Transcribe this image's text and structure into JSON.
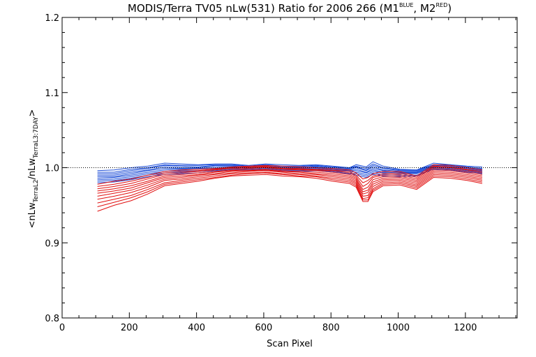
{
  "chart_data": {
    "type": "line",
    "title": {
      "main": "MODIS/Terra TV05 nLw(531) Ratio for 2006 266 (M1",
      "sup1": "BLUE",
      "mid": ", M2",
      "sup2": "RED",
      "end": ")"
    },
    "xlabel": "Scan Pixel",
    "ylabel": {
      "open": "<nLw",
      "sub1": "TerraL2",
      "slash": "/nLw",
      "sub2": "TerraL3:7DAY",
      "close": ">"
    },
    "xlim": [
      0,
      1354
    ],
    "ylim": [
      0.8,
      1.2
    ],
    "xticks": [
      0,
      200,
      400,
      600,
      800,
      1000,
      1200
    ],
    "xtick_labels": [
      "0",
      "200",
      "400",
      "600",
      "800",
      "1000",
      "1200"
    ],
    "yticks": [
      0.8,
      0.9,
      1.0,
      1.1,
      1.2
    ],
    "ytick_labels": [
      "0.8",
      "0.9",
      "1.0",
      "1.1",
      "1.2"
    ],
    "reference_line": 1.0,
    "reference_style": "dotted",
    "grid": false,
    "colors": {
      "blue": "#1f4fd8",
      "red": "#e01010",
      "reference": "#000000"
    },
    "series": [
      {
        "color": "blue",
        "x": [
          105,
          155,
          205,
          255,
          305,
          355,
          405,
          455,
          505,
          555,
          605,
          655,
          705,
          755,
          805,
          855,
          875,
          905,
          925,
          955,
          1005,
          1055,
          1105,
          1155,
          1205,
          1250
        ],
        "y": [
          0.996,
          0.997,
          1.0,
          1.002,
          1.006,
          1.005,
          1.004,
          1.005,
          1.005,
          1.003,
          1.005,
          1.004,
          1.003,
          1.004,
          1.002,
          1.0,
          1.004,
          1.001,
          1.008,
          1.002,
          0.998,
          0.997,
          1.004,
          1.004,
          1.002,
          1.001
        ]
      },
      {
        "color": "blue",
        "x": [
          105,
          155,
          205,
          255,
          305,
          355,
          405,
          455,
          505,
          555,
          605,
          655,
          705,
          755,
          805,
          855,
          875,
          905,
          925,
          955,
          1005,
          1055,
          1105,
          1155,
          1205,
          1250
        ],
        "y": [
          0.994,
          0.994,
          0.998,
          1.0,
          1.004,
          1.003,
          1.003,
          1.004,
          1.004,
          1.002,
          1.004,
          1.002,
          1.002,
          1.003,
          1.001,
          1.0,
          1.002,
          0.999,
          1.005,
          1.0,
          0.997,
          0.997,
          1.006,
          1.004,
          1.001,
          0.999
        ]
      },
      {
        "color": "blue",
        "x": [
          105,
          155,
          205,
          255,
          305,
          355,
          405,
          455,
          505,
          555,
          605,
          655,
          705,
          755,
          805,
          855,
          875,
          905,
          925,
          955,
          1005,
          1055,
          1105,
          1155,
          1205,
          1250
        ],
        "y": [
          0.992,
          0.992,
          0.996,
          0.999,
          1.003,
          1.002,
          1.001,
          1.003,
          1.003,
          1.002,
          1.003,
          1.001,
          1.001,
          1.002,
          1.0,
          0.999,
          1.001,
          0.997,
          1.003,
          0.999,
          0.996,
          0.996,
          1.004,
          1.003,
          1.0,
          0.998
        ]
      },
      {
        "color": "blue",
        "x": [
          105,
          155,
          205,
          255,
          305,
          355,
          405,
          455,
          505,
          555,
          605,
          655,
          705,
          755,
          805,
          855,
          875,
          905,
          925,
          955,
          1005,
          1055,
          1105,
          1155,
          1205,
          1250
        ],
        "y": [
          0.99,
          0.99,
          0.994,
          0.997,
          1.001,
          1.0,
          1.0,
          1.002,
          1.002,
          1.001,
          1.002,
          1.0,
          1.0,
          1.001,
          0.999,
          0.998,
          1.0,
          0.996,
          1.001,
          0.997,
          0.995,
          0.995,
          1.003,
          1.002,
          0.999,
          0.997
        ]
      },
      {
        "color": "blue",
        "x": [
          105,
          155,
          205,
          255,
          305,
          355,
          405,
          455,
          505,
          555,
          605,
          655,
          705,
          755,
          805,
          855,
          875,
          905,
          925,
          955,
          1005,
          1055,
          1105,
          1155,
          1205,
          1250
        ],
        "y": [
          0.988,
          0.988,
          0.992,
          0.996,
          0.999,
          0.999,
          0.999,
          1.0,
          1.001,
          1.0,
          1.001,
          0.999,
          0.999,
          1.0,
          0.998,
          0.997,
          0.998,
          0.994,
          0.999,
          0.996,
          0.994,
          0.994,
          1.002,
          1.001,
          0.998,
          0.996
        ]
      },
      {
        "color": "blue",
        "x": [
          105,
          155,
          205,
          255,
          305,
          355,
          405,
          455,
          505,
          555,
          605,
          655,
          705,
          755,
          805,
          855,
          875,
          905,
          925,
          955,
          1005,
          1055,
          1105,
          1155,
          1205,
          1250
        ],
        "y": [
          0.986,
          0.987,
          0.99,
          0.994,
          0.997,
          0.998,
          0.998,
          0.999,
          1.0,
          0.999,
          1.0,
          0.998,
          0.998,
          0.999,
          0.997,
          0.996,
          0.996,
          0.993,
          0.997,
          0.994,
          0.993,
          0.993,
          1.001,
          1.0,
          0.997,
          0.995
        ]
      },
      {
        "color": "blue",
        "x": [
          105,
          155,
          205,
          255,
          305,
          355,
          405,
          455,
          505,
          555,
          605,
          655,
          705,
          755,
          805,
          855,
          875,
          905,
          925,
          955,
          1005,
          1055,
          1105,
          1155,
          1205,
          1250
        ],
        "y": [
          0.984,
          0.985,
          0.988,
          0.992,
          0.995,
          0.996,
          0.996,
          0.998,
          0.999,
          0.998,
          0.999,
          0.997,
          0.997,
          0.998,
          0.996,
          0.995,
          0.994,
          0.991,
          0.995,
          0.993,
          0.992,
          0.992,
          1.0,
          0.999,
          0.996,
          0.994
        ]
      },
      {
        "color": "blue",
        "x": [
          105,
          155,
          205,
          255,
          305,
          355,
          405,
          455,
          505,
          555,
          605,
          655,
          705,
          755,
          805,
          855,
          875,
          905,
          925,
          955,
          1005,
          1055,
          1105,
          1155,
          1205,
          1250
        ],
        "y": [
          0.982,
          0.983,
          0.986,
          0.99,
          0.993,
          0.994,
          0.995,
          0.996,
          0.998,
          0.997,
          0.998,
          0.996,
          0.996,
          0.997,
          0.995,
          0.993,
          0.992,
          0.989,
          0.993,
          0.991,
          0.99,
          0.99,
          0.999,
          0.998,
          0.995,
          0.993
        ]
      },
      {
        "color": "blue",
        "x": [
          105,
          155,
          205,
          255,
          305,
          355,
          405,
          455,
          505,
          555,
          605,
          655,
          705,
          755,
          805,
          855,
          875,
          905,
          925,
          955,
          1005,
          1055,
          1105,
          1155,
          1205,
          1250
        ],
        "y": [
          0.98,
          0.981,
          0.984,
          0.988,
          0.991,
          0.992,
          0.993,
          0.995,
          0.997,
          0.996,
          0.997,
          0.995,
          0.995,
          0.996,
          0.994,
          0.992,
          0.99,
          0.987,
          0.991,
          0.989,
          0.988,
          0.989,
          0.998,
          0.997,
          0.994,
          0.992
        ]
      },
      {
        "color": "red",
        "x": [
          105,
          155,
          205,
          255,
          305,
          355,
          405,
          455,
          505,
          555,
          605,
          655,
          705,
          755,
          805,
          855,
          875,
          895,
          910,
          925,
          955,
          1005,
          1055,
          1105,
          1155,
          1205,
          1250
        ],
        "y": [
          0.978,
          0.982,
          0.985,
          0.99,
          0.995,
          0.997,
          0.998,
          0.999,
          1.001,
          1.002,
          1.003,
          1.002,
          1.001,
          1.0,
          0.999,
          0.997,
          0.993,
          0.985,
          0.987,
          0.992,
          0.995,
          0.995,
          0.989,
          1.004,
          1.003,
          1.0,
          0.997
        ]
      },
      {
        "color": "red",
        "x": [
          105,
          155,
          205,
          255,
          305,
          355,
          405,
          455,
          505,
          555,
          605,
          655,
          705,
          755,
          805,
          855,
          875,
          895,
          910,
          925,
          955,
          1005,
          1055,
          1105,
          1155,
          1205,
          1250
        ],
        "y": [
          0.975,
          0.978,
          0.982,
          0.987,
          0.993,
          0.995,
          0.996,
          0.998,
          1.0,
          1.001,
          1.002,
          1.0,
          0.999,
          0.998,
          0.997,
          0.995,
          0.99,
          0.98,
          0.983,
          0.989,
          0.992,
          0.993,
          0.987,
          1.002,
          1.001,
          0.998,
          0.995
        ]
      },
      {
        "color": "red",
        "x": [
          105,
          155,
          205,
          255,
          305,
          355,
          405,
          455,
          505,
          555,
          605,
          655,
          705,
          755,
          805,
          855,
          875,
          895,
          910,
          925,
          955,
          1005,
          1055,
          1105,
          1155,
          1205,
          1250
        ],
        "y": [
          0.972,
          0.975,
          0.979,
          0.985,
          0.991,
          0.993,
          0.995,
          0.997,
          0.999,
          1.0,
          1.001,
          0.999,
          0.998,
          0.997,
          0.996,
          0.993,
          0.988,
          0.975,
          0.979,
          0.987,
          0.99,
          0.991,
          0.985,
          1.001,
          1.0,
          0.997,
          0.993
        ]
      },
      {
        "color": "red",
        "x": [
          105,
          155,
          205,
          255,
          305,
          355,
          405,
          455,
          505,
          555,
          605,
          655,
          705,
          755,
          805,
          855,
          875,
          895,
          910,
          925,
          955,
          1005,
          1055,
          1105,
          1155,
          1205,
          1250
        ],
        "y": [
          0.969,
          0.972,
          0.976,
          0.982,
          0.989,
          0.991,
          0.993,
          0.995,
          0.997,
          0.999,
          1.0,
          0.998,
          0.997,
          0.996,
          0.994,
          0.991,
          0.986,
          0.971,
          0.974,
          0.984,
          0.988,
          0.989,
          0.983,
          0.999,
          0.998,
          0.995,
          0.991
        ]
      },
      {
        "color": "red",
        "x": [
          105,
          155,
          205,
          255,
          305,
          355,
          405,
          455,
          505,
          555,
          605,
          655,
          705,
          755,
          805,
          855,
          875,
          895,
          910,
          925,
          955,
          1005,
          1055,
          1105,
          1155,
          1205,
          1250
        ],
        "y": [
          0.966,
          0.969,
          0.973,
          0.98,
          0.987,
          0.989,
          0.991,
          0.994,
          0.996,
          0.997,
          0.998,
          0.996,
          0.995,
          0.994,
          0.992,
          0.989,
          0.984,
          0.968,
          0.97,
          0.981,
          0.986,
          0.987,
          0.981,
          0.997,
          0.996,
          0.993,
          0.989
        ]
      },
      {
        "color": "red",
        "x": [
          105,
          155,
          205,
          255,
          305,
          355,
          405,
          455,
          505,
          555,
          605,
          655,
          705,
          755,
          805,
          855,
          875,
          895,
          910,
          925,
          955,
          1005,
          1055,
          1105,
          1155,
          1205,
          1250
        ],
        "y": [
          0.962,
          0.966,
          0.97,
          0.977,
          0.985,
          0.987,
          0.99,
          0.992,
          0.995,
          0.996,
          0.997,
          0.995,
          0.994,
          0.992,
          0.99,
          0.987,
          0.982,
          0.965,
          0.967,
          0.978,
          0.984,
          0.985,
          0.979,
          0.995,
          0.994,
          0.991,
          0.987
        ]
      },
      {
        "color": "red",
        "x": [
          105,
          155,
          205,
          255,
          305,
          355,
          405,
          455,
          505,
          555,
          605,
          655,
          705,
          755,
          805,
          855,
          875,
          895,
          910,
          925,
          955,
          1005,
          1055,
          1105,
          1155,
          1205,
          1250
        ],
        "y": [
          0.958,
          0.962,
          0.967,
          0.974,
          0.983,
          0.985,
          0.988,
          0.991,
          0.993,
          0.995,
          0.996,
          0.994,
          0.992,
          0.991,
          0.988,
          0.985,
          0.98,
          0.962,
          0.963,
          0.975,
          0.982,
          0.983,
          0.977,
          0.993,
          0.992,
          0.989,
          0.985
        ]
      },
      {
        "color": "red",
        "x": [
          105,
          155,
          205,
          255,
          305,
          355,
          405,
          455,
          505,
          555,
          605,
          655,
          705,
          755,
          805,
          855,
          875,
          895,
          910,
          925,
          955,
          1005,
          1055,
          1105,
          1155,
          1205,
          1250
        ],
        "y": [
          0.953,
          0.958,
          0.963,
          0.971,
          0.98,
          0.983,
          0.986,
          0.989,
          0.992,
          0.993,
          0.994,
          0.992,
          0.991,
          0.989,
          0.986,
          0.983,
          0.978,
          0.959,
          0.96,
          0.972,
          0.98,
          0.981,
          0.975,
          0.991,
          0.99,
          0.987,
          0.983
        ]
      },
      {
        "color": "red",
        "x": [
          105,
          155,
          205,
          255,
          305,
          355,
          405,
          455,
          505,
          555,
          605,
          655,
          705,
          755,
          805,
          855,
          875,
          895,
          910,
          925,
          955,
          1005,
          1055,
          1105,
          1155,
          1205,
          1250
        ],
        "y": [
          0.948,
          0.954,
          0.96,
          0.968,
          0.978,
          0.981,
          0.984,
          0.987,
          0.99,
          0.992,
          0.993,
          0.991,
          0.989,
          0.988,
          0.984,
          0.981,
          0.976,
          0.957,
          0.957,
          0.97,
          0.978,
          0.979,
          0.973,
          0.989,
          0.988,
          0.985,
          0.981
        ]
      },
      {
        "color": "red",
        "x": [
          105,
          155,
          205,
          255,
          305,
          355,
          405,
          455,
          505,
          555,
          605,
          655,
          705,
          755,
          805,
          855,
          875,
          895,
          910,
          925,
          955,
          1005,
          1055,
          1105,
          1155,
          1205,
          1250
        ],
        "y": [
          0.942,
          0.95,
          0.956,
          0.965,
          0.976,
          0.979,
          0.982,
          0.986,
          0.989,
          0.99,
          0.991,
          0.989,
          0.988,
          0.986,
          0.982,
          0.979,
          0.974,
          0.955,
          0.955,
          0.968,
          0.976,
          0.977,
          0.971,
          0.987,
          0.986,
          0.983,
          0.979
        ]
      }
    ]
  }
}
